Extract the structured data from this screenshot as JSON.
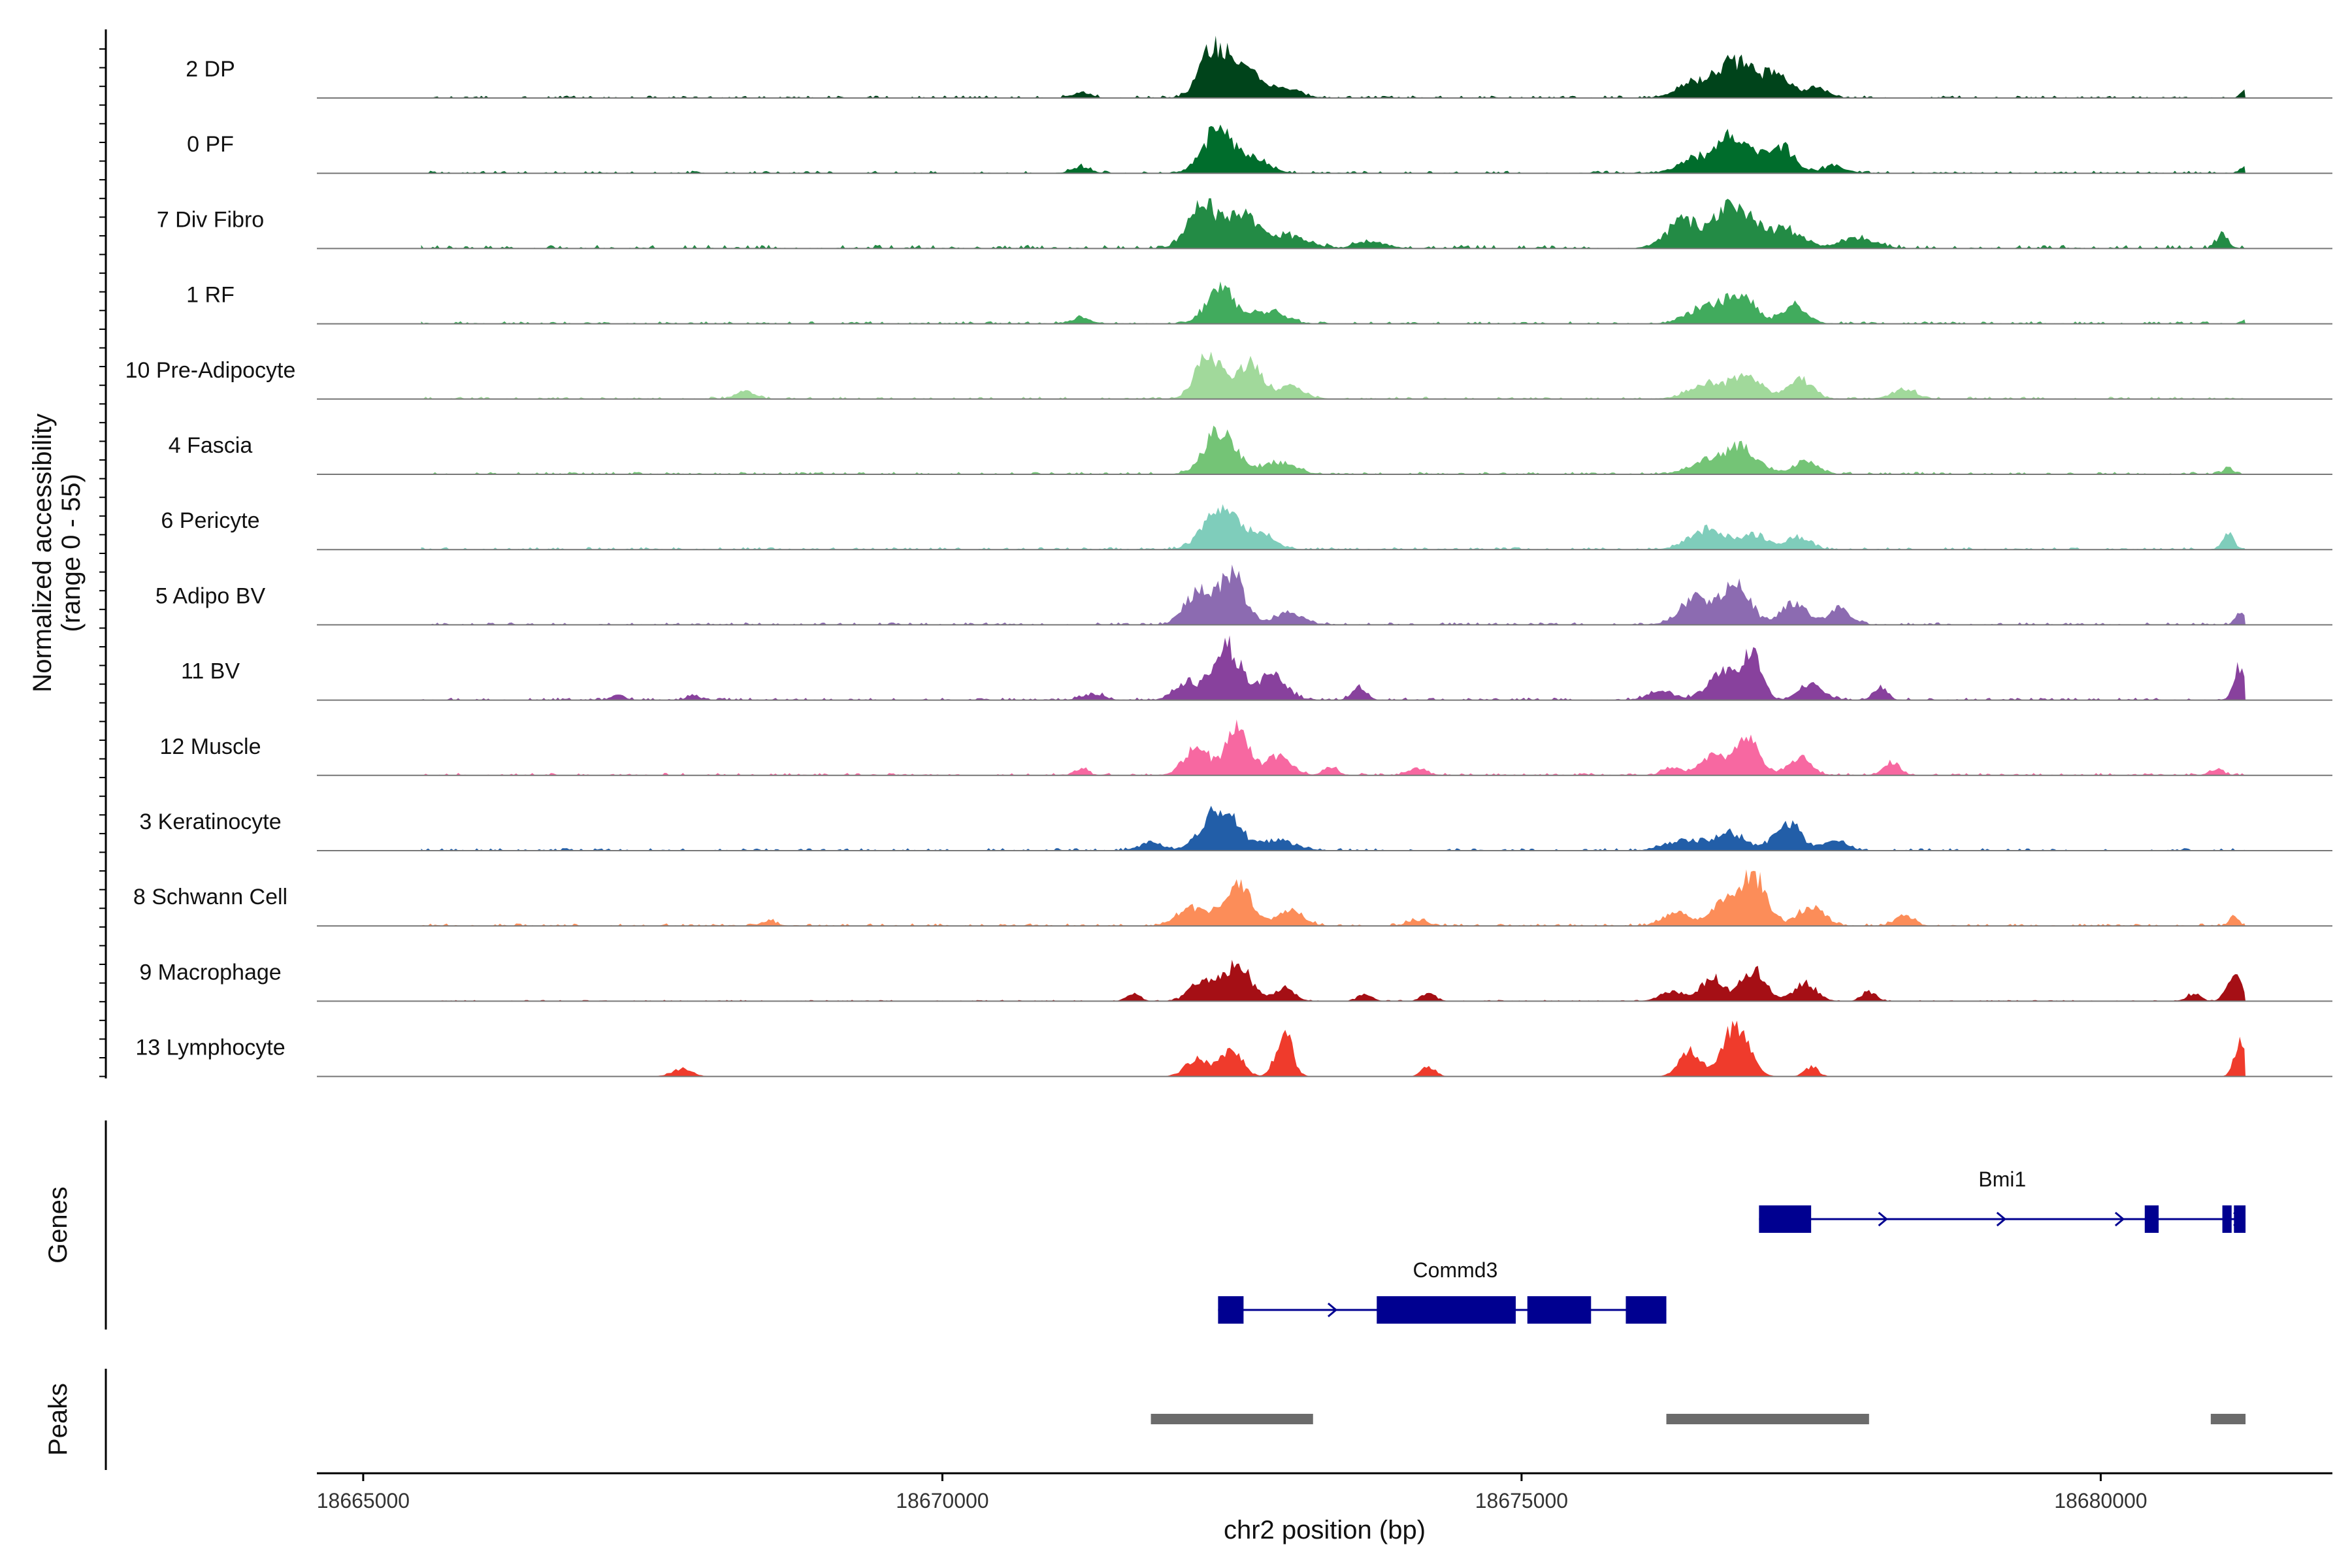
{
  "chart_data": {
    "type": "area",
    "y_axis_title_line1": "Normalized accessibility",
    "y_axis_title_line2": "(range 0 - 55)",
    "ylim": [
      0,
      55
    ],
    "xlabel": "chr2 position (bp)",
    "xlim": [
      18664600,
      18682000
    ],
    "x_ticks": [
      18665000,
      18670000,
      18675000,
      18680000
    ],
    "x_tick_labels": [
      "18665000",
      "18670000",
      "18675000",
      "18680000"
    ],
    "genes_panel_label": "Genes",
    "peaks_panel_label": "Peaks",
    "tracks": [
      {
        "name": "2 DP",
        "color": "#00441b",
        "peaks": [
          [
            18671200,
            4,
            80
          ],
          [
            18672350,
            40,
            120
          ],
          [
            18672600,
            22,
            100
          ],
          [
            18672900,
            10,
            150
          ],
          [
            18676500,
            12,
            150
          ],
          [
            18676850,
            28,
            150
          ],
          [
            18677200,
            18,
            120
          ],
          [
            18677550,
            8,
            100
          ],
          [
            18681250,
            6,
            40
          ]
        ],
        "noise": 2
      },
      {
        "name": "0 PF",
        "color": "#006d2c",
        "peaks": [
          [
            18671200,
            5,
            80
          ],
          [
            18672380,
            34,
            130
          ],
          [
            18672700,
            12,
            120
          ],
          [
            18676500,
            10,
            150
          ],
          [
            18676850,
            30,
            150
          ],
          [
            18677250,
            20,
            110
          ],
          [
            18677700,
            6,
            100
          ],
          [
            18681250,
            5,
            40
          ]
        ],
        "noise": 2
      },
      {
        "name": "7 Div Fibro",
        "color": "#238b45",
        "peaks": [
          [
            18672250,
            38,
            120
          ],
          [
            18672600,
            28,
            120
          ],
          [
            18673000,
            10,
            160
          ],
          [
            18673700,
            6,
            120
          ],
          [
            18676400,
            22,
            140
          ],
          [
            18676850,
            35,
            160
          ],
          [
            18677300,
            14,
            140
          ],
          [
            18677900,
            8,
            150
          ],
          [
            18681050,
            10,
            50
          ]
        ],
        "noise": 3
      },
      {
        "name": "1 RF",
        "color": "#41ab5d",
        "peaks": [
          [
            18671200,
            5,
            80
          ],
          [
            18672400,
            28,
            120
          ],
          [
            18672800,
            10,
            150
          ],
          [
            18676600,
            14,
            150
          ],
          [
            18676900,
            22,
            120
          ],
          [
            18677350,
            14,
            110
          ],
          [
            18681250,
            3,
            40
          ]
        ],
        "noise": 2
      },
      {
        "name": "10 Pre-Adipocyte",
        "color": "#a1d99b",
        "peaks": [
          [
            18668300,
            6,
            80
          ],
          [
            18672300,
            36,
            110
          ],
          [
            18672650,
            30,
            100
          ],
          [
            18673000,
            10,
            120
          ],
          [
            18676600,
            12,
            160
          ],
          [
            18676950,
            18,
            120
          ],
          [
            18677400,
            16,
            110
          ],
          [
            18678300,
            8,
            100
          ]
        ],
        "noise": 2
      },
      {
        "name": "4 Fascia",
        "color": "#74c476",
        "peaks": [
          [
            18672400,
            36,
            130
          ],
          [
            18672900,
            10,
            140
          ],
          [
            18676600,
            10,
            150
          ],
          [
            18676900,
            20,
            140
          ],
          [
            18677450,
            10,
            110
          ],
          [
            18681100,
            6,
            40
          ]
        ],
        "noise": 2
      },
      {
        "name": "6 Pericyte",
        "color": "#7fcdbb",
        "peaks": [
          [
            18672400,
            34,
            140
          ],
          [
            18672750,
            12,
            120
          ],
          [
            18676600,
            16,
            150
          ],
          [
            18677000,
            12,
            120
          ],
          [
            18677400,
            10,
            100
          ],
          [
            18681100,
            12,
            50
          ]
        ],
        "noise": 2
      },
      {
        "name": "5 Adipo BV",
        "color": "#8c6bb1",
        "peaks": [
          [
            18672200,
            26,
            110
          ],
          [
            18672500,
            40,
            110
          ],
          [
            18673000,
            10,
            120
          ],
          [
            18676500,
            22,
            130
          ],
          [
            18676850,
            32,
            120
          ],
          [
            18677350,
            18,
            110
          ],
          [
            18677750,
            12,
            100
          ],
          [
            18681200,
            10,
            40
          ]
        ],
        "noise": 2
      },
      {
        "name": "11 BV",
        "color": "#88419d",
        "peaks": [
          [
            18667200,
            4,
            60
          ],
          [
            18667850,
            4,
            50
          ],
          [
            18671300,
            5,
            90
          ],
          [
            18672100,
            14,
            100
          ],
          [
            18672450,
            44,
            120
          ],
          [
            18672850,
            20,
            120
          ],
          [
            18673600,
            10,
            60
          ],
          [
            18676200,
            8,
            100
          ],
          [
            18676750,
            22,
            140
          ],
          [
            18677000,
            32,
            80
          ],
          [
            18677500,
            14,
            100
          ],
          [
            18678100,
            10,
            60
          ],
          [
            18681200,
            26,
            50
          ]
        ],
        "noise": 2
      },
      {
        "name": "12 Muscle",
        "color": "#f768a1",
        "peaks": [
          [
            18671200,
            5,
            60
          ],
          [
            18672200,
            22,
            110
          ],
          [
            18672550,
            42,
            90
          ],
          [
            18672900,
            16,
            110
          ],
          [
            18673350,
            6,
            60
          ],
          [
            18674100,
            5,
            80
          ],
          [
            18676300,
            6,
            80
          ],
          [
            18676650,
            14,
            110
          ],
          [
            18676950,
            30,
            100
          ],
          [
            18677400,
            14,
            100
          ],
          [
            18678200,
            10,
            70
          ],
          [
            18681000,
            5,
            60
          ]
        ],
        "noise": 2
      },
      {
        "name": "3 Keratinocyte",
        "color": "#225ea8",
        "peaks": [
          [
            18671800,
            6,
            100
          ],
          [
            18672400,
            34,
            150
          ],
          [
            18672900,
            8,
            150
          ],
          [
            18676400,
            8,
            150
          ],
          [
            18676800,
            14,
            140
          ],
          [
            18677300,
            22,
            110
          ],
          [
            18677700,
            8,
            100
          ]
        ],
        "noise": 2
      },
      {
        "name": "8 Schwann Cell",
        "color": "#fc8d59",
        "peaks": [
          [
            18668500,
            4,
            60
          ],
          [
            18672150,
            14,
            120
          ],
          [
            18672550,
            32,
            120
          ],
          [
            18673000,
            12,
            110
          ],
          [
            18674100,
            5,
            80
          ],
          [
            18676350,
            10,
            120
          ],
          [
            18676750,
            18,
            110
          ],
          [
            18677000,
            40,
            110
          ],
          [
            18677500,
            16,
            110
          ],
          [
            18678300,
            8,
            80
          ],
          [
            18681150,
            8,
            40
          ]
        ],
        "noise": 2
      },
      {
        "name": "9 Macrophage",
        "color": "#a50f15",
        "peaks": [
          [
            18671650,
            6,
            60
          ],
          [
            18672250,
            16,
            110
          ],
          [
            18672550,
            30,
            110
          ],
          [
            18672950,
            10,
            90
          ],
          [
            18673650,
            6,
            60
          ],
          [
            18674200,
            6,
            60
          ],
          [
            18676300,
            8,
            100
          ],
          [
            18676650,
            18,
            100
          ],
          [
            18677000,
            26,
            100
          ],
          [
            18677450,
            14,
            100
          ],
          [
            18678000,
            8,
            60
          ],
          [
            18680800,
            6,
            60
          ],
          [
            18681150,
            22,
            60
          ]
        ],
        "noise": 1
      },
      {
        "name": "13 Lymphocyte",
        "color": "#ef3b2c",
        "peaks": [
          [
            18667750,
            6,
            90
          ],
          [
            18672200,
            14,
            100
          ],
          [
            18672500,
            22,
            90
          ],
          [
            18672950,
            36,
            70
          ],
          [
            18674200,
            8,
            60
          ],
          [
            18676450,
            22,
            90
          ],
          [
            18676850,
            40,
            110
          ],
          [
            18677500,
            8,
            60
          ],
          [
            18681200,
            28,
            50
          ]
        ],
        "noise": 0
      }
    ],
    "genes": [
      {
        "name": "Bmi1",
        "color": "#000090",
        "start": 18677050,
        "end": 18681250,
        "row": 0,
        "exons": [
          [
            18677050,
            18677500
          ],
          [
            18680380,
            18680500
          ],
          [
            18681050,
            18681130
          ],
          [
            18681150,
            18681250
          ]
        ]
      },
      {
        "name": "Commd3",
        "color": "#000090",
        "start": 18672380,
        "end": 18676250,
        "row": 1,
        "exons": [
          [
            18672380,
            18672600
          ],
          [
            18673750,
            18674950
          ],
          [
            18675050,
            18675600
          ],
          [
            18675900,
            18676250
          ]
        ]
      }
    ],
    "peaks_track": {
      "color": "#6b6b6b",
      "intervals": [
        [
          18671800,
          18673200
        ],
        [
          18676250,
          18678000
        ],
        [
          18680950,
          18681250
        ]
      ]
    }
  }
}
